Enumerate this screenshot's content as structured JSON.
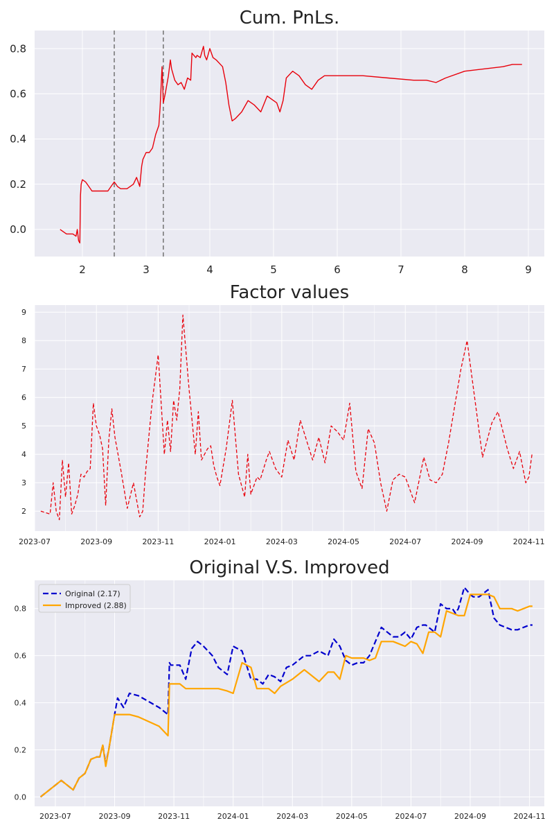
{
  "chart_data": [
    {
      "type": "line",
      "title": "Cum. PnLs.",
      "xlabel": "",
      "ylabel": "",
      "xlim": [
        1.25,
        9.25
      ],
      "ylim": [
        -0.12,
        0.88
      ],
      "xticks": [
        2,
        3,
        4,
        5,
        6,
        7,
        8,
        9
      ],
      "yticks": [
        0.0,
        0.2,
        0.4,
        0.6,
        0.8
      ],
      "xtick_labels": [
        "2",
        "3",
        "4",
        "5",
        "6",
        "7",
        "8",
        "9"
      ],
      "ytick_labels": [
        "0.0",
        "0.2",
        "0.4",
        "0.6",
        "0.8"
      ],
      "grid": true,
      "vlines": [
        2.5,
        3.27
      ],
      "colors": {
        "line": "#e8000b",
        "vline": "#7a7a7a"
      },
      "series": [
        {
          "x": [
            1.65,
            1.75,
            1.85,
            1.9,
            1.92,
            1.94,
            1.96,
            1.97,
            1.98,
            2.0,
            2.05,
            2.1,
            2.15,
            2.2,
            2.3,
            2.4,
            2.45,
            2.5,
            2.55,
            2.6,
            2.7,
            2.8,
            2.85,
            2.9,
            2.93,
            2.95,
            3.0,
            3.05,
            3.1,
            3.15,
            3.2,
            3.22,
            3.25,
            3.27,
            3.3,
            3.35,
            3.38,
            3.4,
            3.45,
            3.5,
            3.55,
            3.6,
            3.65,
            3.7,
            3.72,
            3.75,
            3.78,
            3.8,
            3.85,
            3.9,
            3.92,
            3.95,
            4.0,
            4.05,
            4.1,
            4.2,
            4.25,
            4.3,
            4.35,
            4.4,
            4.5,
            4.6,
            4.7,
            4.8,
            4.9,
            5.0,
            5.05,
            5.1,
            5.15,
            5.2,
            5.3,
            5.4,
            5.5,
            5.6,
            5.7,
            5.75,
            5.8,
            6.0,
            6.4,
            6.8,
            7.2,
            7.4,
            7.55,
            7.7,
            8.0,
            8.3,
            8.6,
            8.75,
            8.9
          ],
          "y": [
            0.0,
            -0.02,
            -0.02,
            -0.03,
            0.0,
            -0.05,
            -0.06,
            0.15,
            0.2,
            0.22,
            0.21,
            0.19,
            0.17,
            0.17,
            0.17,
            0.17,
            0.19,
            0.21,
            0.19,
            0.18,
            0.18,
            0.2,
            0.23,
            0.19,
            0.28,
            0.31,
            0.34,
            0.34,
            0.36,
            0.42,
            0.46,
            0.54,
            0.72,
            0.56,
            0.6,
            0.68,
            0.75,
            0.71,
            0.66,
            0.64,
            0.65,
            0.62,
            0.67,
            0.66,
            0.78,
            0.77,
            0.76,
            0.77,
            0.76,
            0.81,
            0.77,
            0.75,
            0.8,
            0.76,
            0.75,
            0.72,
            0.65,
            0.55,
            0.48,
            0.49,
            0.52,
            0.57,
            0.55,
            0.52,
            0.59,
            0.57,
            0.56,
            0.52,
            0.57,
            0.67,
            0.7,
            0.68,
            0.64,
            0.62,
            0.66,
            0.67,
            0.68,
            0.68,
            0.68,
            0.67,
            0.66,
            0.66,
            0.65,
            0.67,
            0.7,
            0.71,
            0.72,
            0.73,
            0.73
          ]
        }
      ]
    },
    {
      "type": "line",
      "title": "Factor values",
      "xlabel": "",
      "ylabel": "",
      "xlim": [
        0,
        16.5
      ],
      "ylim": [
        1.3,
        9.25
      ],
      "xticks": [
        0,
        2,
        4,
        6,
        8,
        10,
        12,
        14,
        16
      ],
      "yticks": [
        2,
        3,
        4,
        5,
        6,
        7,
        8,
        9
      ],
      "xtick_labels": [
        "2023-07",
        "2023-09",
        "2023-11",
        "2024-01",
        "2024-03",
        "2024-05",
        "2024-07",
        "2024-09",
        "2024-11"
      ],
      "ytick_labels": [
        "2",
        "3",
        "4",
        "5",
        "6",
        "7",
        "8",
        "9"
      ],
      "grid": true,
      "colors": {
        "line": "#e8000b"
      },
      "series": [
        {
          "x": [
            0.2,
            0.5,
            0.6,
            0.7,
            0.8,
            0.9,
            1.0,
            1.1,
            1.2,
            1.3,
            1.4,
            1.5,
            1.6,
            1.7,
            1.8,
            1.9,
            2.0,
            2.1,
            2.2,
            2.3,
            2.4,
            2.5,
            2.6,
            2.8,
            3.0,
            3.2,
            3.4,
            3.5,
            3.6,
            3.8,
            4.0,
            4.2,
            4.3,
            4.4,
            4.5,
            4.6,
            4.7,
            4.8,
            5.0,
            5.2,
            5.3,
            5.4,
            5.5,
            5.6,
            5.7,
            5.8,
            5.9,
            6.0,
            6.2,
            6.4,
            6.6,
            6.8,
            6.9,
            7.0,
            7.2,
            7.3,
            7.5,
            7.6,
            7.8,
            8.0,
            8.2,
            8.4,
            8.6,
            9.0,
            9.2,
            9.4,
            9.6,
            9.8,
            10.0,
            10.2,
            10.4,
            10.6,
            10.8,
            11.0,
            11.2,
            11.4,
            11.6,
            11.8,
            12.0,
            12.3,
            12.6,
            12.8,
            13.0,
            13.2,
            13.4,
            13.6,
            13.8,
            14.0,
            14.5,
            14.8,
            15.0,
            15.3,
            15.5,
            15.7,
            15.9,
            16.0,
            16.1
          ],
          "y": [
            2.0,
            1.9,
            3.0,
            2.0,
            1.7,
            3.8,
            2.5,
            3.7,
            1.9,
            2.2,
            2.6,
            3.3,
            3.2,
            3.4,
            3.5,
            5.8,
            5.0,
            4.7,
            4.2,
            2.2,
            4.5,
            5.6,
            4.6,
            3.4,
            2.1,
            3.0,
            1.8,
            2.0,
            3.5,
            5.8,
            7.5,
            4.0,
            5.2,
            4.1,
            5.9,
            5.2,
            6.3,
            8.9,
            6.3,
            4.0,
            5.5,
            3.8,
            4.0,
            4.2,
            4.3,
            3.6,
            3.2,
            2.9,
            4.2,
            5.9,
            3.3,
            2.5,
            4.0,
            2.6,
            3.2,
            3.1,
            3.8,
            4.1,
            3.5,
            3.2,
            4.5,
            3.8,
            5.2,
            3.8,
            4.6,
            3.7,
            5.0,
            4.8,
            4.5,
            5.8,
            3.4,
            2.8,
            4.9,
            4.4,
            3.0,
            2.0,
            3.1,
            3.3,
            3.2,
            2.3,
            3.9,
            3.1,
            3.0,
            3.3,
            4.4,
            5.7,
            7.0,
            8.0,
            3.9,
            5.1,
            5.5,
            4.2,
            3.5,
            4.1,
            3.0,
            3.2,
            4.0
          ]
        }
      ]
    },
    {
      "type": "line",
      "title": "Original V.S. Improved",
      "xlabel": "",
      "ylabel": "",
      "xlim": [
        -0.7,
        16.5
      ],
      "ylim": [
        -0.04,
        0.92
      ],
      "xticks": [
        0,
        2,
        4,
        6,
        8,
        10,
        12,
        14,
        16
      ],
      "yticks": [
        0.0,
        0.2,
        0.4,
        0.6,
        0.8
      ],
      "xtick_labels": [
        "2023-07",
        "2023-09",
        "2023-11",
        "2024-01",
        "2024-03",
        "2024-05",
        "2024-07",
        "2024-09",
        "2024-11"
      ],
      "ytick_labels": [
        "0.0",
        "0.2",
        "0.4",
        "0.6",
        "0.8"
      ],
      "grid": true,
      "legend_placement": "top-left",
      "colors": {
        "original": "#0000cd",
        "improved": "#ffa500"
      },
      "series": [
        {
          "name": "Original (2.17)",
          "style": "dashed",
          "x": [
            -0.5,
            0.2,
            0.5,
            0.6,
            0.8,
            0.9,
            1.0,
            1.2,
            1.4,
            1.5,
            1.6,
            1.7,
            1.8,
            2.0,
            2.1,
            2.3,
            2.5,
            2.8,
            3.5,
            3.8,
            3.85,
            3.9,
            4.2,
            4.4,
            4.6,
            4.8,
            5.0,
            5.3,
            5.5,
            5.8,
            6.0,
            6.3,
            6.6,
            6.8,
            7.0,
            7.2,
            7.4,
            7.6,
            7.8,
            8.0,
            8.4,
            8.6,
            8.9,
            9.2,
            9.4,
            9.6,
            9.8,
            9.9,
            10.0,
            10.2,
            10.4,
            10.6,
            10.8,
            11.0,
            11.2,
            11.4,
            11.6,
            11.8,
            12.0,
            12.2,
            12.4,
            12.5,
            12.6,
            12.8,
            13.0,
            13.2,
            13.4,
            13.5,
            13.6,
            13.8,
            14.0,
            14.1,
            14.3,
            14.6,
            14.8,
            15.0,
            15.2,
            15.4,
            15.6,
            15.8,
            16.0,
            16.1
          ],
          "y": [
            0.0,
            0.07,
            0.04,
            0.03,
            0.08,
            0.09,
            0.1,
            0.16,
            0.17,
            0.17,
            0.22,
            0.14,
            0.2,
            0.35,
            0.42,
            0.38,
            0.44,
            0.43,
            0.38,
            0.35,
            0.57,
            0.56,
            0.56,
            0.5,
            0.63,
            0.66,
            0.64,
            0.6,
            0.55,
            0.52,
            0.64,
            0.62,
            0.5,
            0.5,
            0.48,
            0.52,
            0.51,
            0.49,
            0.55,
            0.56,
            0.6,
            0.6,
            0.62,
            0.6,
            0.67,
            0.64,
            0.58,
            0.57,
            0.56,
            0.57,
            0.57,
            0.6,
            0.66,
            0.72,
            0.7,
            0.68,
            0.68,
            0.7,
            0.67,
            0.72,
            0.73,
            0.73,
            0.72,
            0.7,
            0.82,
            0.8,
            0.8,
            0.78,
            0.8,
            0.89,
            0.86,
            0.85,
            0.85,
            0.88,
            0.76,
            0.73,
            0.72,
            0.71,
            0.71,
            0.72,
            0.73,
            0.73
          ]
        },
        {
          "name": "Improved (2.88)",
          "style": "solid",
          "x": [
            -0.5,
            0.2,
            0.5,
            0.6,
            0.8,
            0.9,
            1.0,
            1.2,
            1.4,
            1.5,
            1.6,
            1.7,
            1.8,
            2.0,
            2.3,
            2.5,
            2.8,
            3.5,
            3.8,
            3.85,
            3.9,
            4.2,
            4.4,
            4.6,
            4.8,
            5.0,
            5.3,
            5.5,
            5.8,
            6.0,
            6.3,
            6.6,
            6.8,
            7.0,
            7.2,
            7.4,
            7.6,
            8.0,
            8.4,
            8.6,
            8.9,
            9.2,
            9.4,
            9.6,
            9.8,
            10.0,
            10.2,
            10.4,
            10.6,
            10.8,
            11.0,
            11.2,
            11.4,
            11.6,
            11.8,
            12.0,
            12.2,
            12.4,
            12.6,
            12.8,
            13.0,
            13.2,
            13.4,
            13.6,
            13.8,
            14.0,
            14.3,
            14.6,
            14.8,
            15.0,
            15.2,
            15.4,
            15.6,
            15.8,
            16.0,
            16.1
          ],
          "y": [
            0.0,
            0.07,
            0.04,
            0.03,
            0.08,
            0.09,
            0.1,
            0.16,
            0.17,
            0.17,
            0.22,
            0.13,
            0.2,
            0.35,
            0.35,
            0.35,
            0.34,
            0.3,
            0.26,
            0.48,
            0.48,
            0.48,
            0.46,
            0.46,
            0.46,
            0.46,
            0.46,
            0.46,
            0.45,
            0.44,
            0.57,
            0.55,
            0.46,
            0.46,
            0.46,
            0.44,
            0.47,
            0.5,
            0.54,
            0.52,
            0.49,
            0.53,
            0.53,
            0.5,
            0.6,
            0.59,
            0.59,
            0.59,
            0.58,
            0.59,
            0.66,
            0.66,
            0.66,
            0.65,
            0.64,
            0.66,
            0.65,
            0.61,
            0.7,
            0.7,
            0.68,
            0.79,
            0.78,
            0.77,
            0.77,
            0.86,
            0.86,
            0.86,
            0.85,
            0.8,
            0.8,
            0.8,
            0.79,
            0.8,
            0.81,
            0.81
          ]
        }
      ]
    }
  ]
}
